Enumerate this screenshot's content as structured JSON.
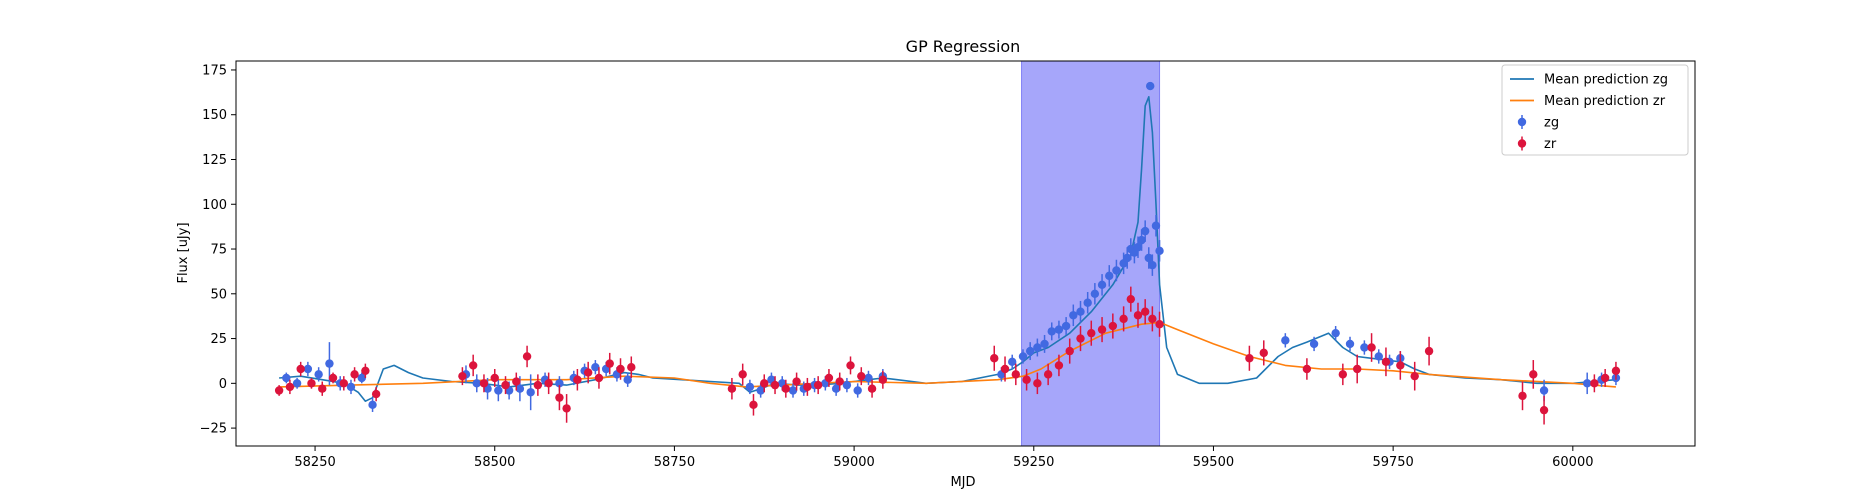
{
  "chart_data": {
    "type": "scatter",
    "title": "GP Regression",
    "xlabel": "MJD",
    "ylabel": "Flux [uJy]",
    "xlim": [
      58140,
      60170
    ],
    "ylim": [
      -35,
      180
    ],
    "xticks": [
      58250,
      58500,
      58750,
      59000,
      59250,
      59500,
      59750,
      60000
    ],
    "yticks": [
      -25,
      0,
      25,
      50,
      75,
      100,
      125,
      150,
      175
    ],
    "legend_position": "upper right",
    "shaded_region": {
      "x_start": 59233,
      "x_end": 59425,
      "color": "#a6a6fa"
    },
    "series": [
      {
        "name": "Mean prediction zg",
        "kind": "line",
        "color": "#1f77b4",
        "x": [
          58200,
          58230,
          58260,
          58290,
          58310,
          58320,
          58330,
          58345,
          58360,
          58380,
          58400,
          58440,
          58480,
          58500,
          58520,
          58560,
          58600,
          58640,
          58660,
          58680,
          58700,
          58720,
          58760,
          58800,
          58840,
          58855,
          58870,
          58890,
          58920,
          58950,
          58980,
          59000,
          59020,
          59040,
          59060,
          59100,
          59150,
          59200,
          59220,
          59235,
          59250,
          59270,
          59300,
          59330,
          59360,
          59385,
          59395,
          59400,
          59405,
          59410,
          59415,
          59420,
          59425,
          59435,
          59450,
          59480,
          59520,
          59560,
          59590,
          59610,
          59630,
          59660,
          59680,
          59700,
          59720,
          59740,
          59760,
          59780,
          59800,
          59850,
          59900,
          59950,
          60000,
          60030,
          60060
        ],
        "y": [
          3,
          4,
          2,
          0,
          -5,
          -10,
          -8,
          8,
          10,
          6,
          3,
          1,
          0,
          -1,
          -2,
          0,
          -1,
          2,
          4,
          6,
          5,
          3,
          2,
          1,
          0,
          -5,
          -3,
          0,
          -1,
          -1,
          0,
          1,
          2,
          3,
          2,
          0,
          1,
          5,
          8,
          12,
          17,
          20,
          28,
          40,
          55,
          72,
          90,
          120,
          155,
          160,
          140,
          100,
          55,
          20,
          5,
          0,
          0,
          3,
          15,
          20,
          23,
          28,
          20,
          15,
          14,
          13,
          12,
          8,
          5,
          3,
          2,
          0,
          0,
          1,
          2
        ]
      },
      {
        "name": "Mean prediction zr",
        "kind": "line",
        "color": "#ff7f0e",
        "x": [
          58200,
          58300,
          58400,
          58500,
          58600,
          58680,
          58750,
          58800,
          58850,
          58900,
          59000,
          59100,
          59200,
          59235,
          59260,
          59300,
          59350,
          59400,
          59425,
          59450,
          59500,
          59550,
          59600,
          59650,
          59700,
          59750,
          59800,
          59900,
          60000,
          60060
        ],
        "y": [
          -2,
          -1,
          0,
          2,
          2,
          4,
          3,
          0,
          -2,
          -1,
          1,
          0,
          2,
          4,
          8,
          18,
          28,
          33,
          34,
          30,
          22,
          15,
          10,
          8,
          8,
          7,
          5,
          2,
          0,
          -2
        ]
      },
      {
        "name": "zg",
        "kind": "errorbar",
        "color": "#4169e1",
        "x": [
          58210,
          58225,
          58240,
          58255,
          58270,
          58285,
          58300,
          58315,
          58330,
          58460,
          58475,
          58490,
          58505,
          58520,
          58535,
          58550,
          58570,
          58590,
          58610,
          58625,
          58640,
          58655,
          58670,
          58685,
          58855,
          58870,
          58885,
          58900,
          58915,
          58930,
          58945,
          58960,
          58975,
          58990,
          59005,
          59020,
          59040,
          59205,
          59220,
          59235,
          59245,
          59255,
          59265,
          59275,
          59285,
          59295,
          59305,
          59315,
          59325,
          59335,
          59345,
          59355,
          59365,
          59375,
          59380,
          59385,
          59390,
          59395,
          59400,
          59405,
          59410,
          59415,
          59420,
          59425,
          59600,
          59640,
          59670,
          59690,
          59710,
          59730,
          59745,
          59760,
          59960,
          60020,
          60040,
          60060
        ],
        "y": [
          3,
          0,
          8,
          5,
          11,
          0,
          -2,
          3,
          -12,
          5,
          0,
          -3,
          -4,
          -4,
          -3,
          -5,
          2,
          0,
          3,
          7,
          9,
          8,
          5,
          2,
          -2,
          -4,
          2,
          0,
          -4,
          -3,
          -1,
          0,
          -3,
          -1,
          -4,
          3,
          4,
          5,
          12,
          15,
          18,
          20,
          22,
          29,
          30,
          32,
          38,
          40,
          45,
          50,
          55,
          60,
          63,
          67,
          70,
          75,
          73,
          76,
          80,
          85,
          70,
          66,
          88,
          74,
          24,
          22,
          28,
          22,
          20,
          15,
          12,
          14,
          -4,
          0,
          2,
          3
        ],
        "error": [
          3,
          3,
          4,
          4,
          12,
          4,
          4,
          3,
          4,
          5,
          5,
          6,
          6,
          5,
          7,
          10,
          4,
          4,
          4,
          4,
          4,
          4,
          4,
          4,
          4,
          4,
          4,
          4,
          4,
          4,
          4,
          4,
          4,
          4,
          4,
          4,
          4,
          4,
          4,
          4,
          5,
          5,
          5,
          5,
          5,
          5,
          6,
          6,
          6,
          6,
          6,
          6,
          6,
          6,
          6,
          6,
          6,
          6,
          6,
          6,
          6,
          6,
          6,
          6,
          4,
          4,
          4,
          4,
          4,
          4,
          4,
          4,
          6,
          6,
          4,
          4
        ],
        "highlight_point": {
          "x": 59412,
          "y": 166
        }
      },
      {
        "name": "zr",
        "kind": "errorbar",
        "color": "#dc143c",
        "x": [
          58200,
          58215,
          58230,
          58245,
          58260,
          58275,
          58290,
          58305,
          58320,
          58335,
          58455,
          58470,
          58485,
          58500,
          58515,
          58530,
          58545,
          58560,
          58575,
          58590,
          58600,
          58615,
          58630,
          58645,
          58660,
          58675,
          58690,
          58830,
          58845,
          58860,
          58875,
          58890,
          58905,
          58920,
          58935,
          58950,
          58965,
          58980,
          58995,
          59010,
          59025,
          59040,
          59195,
          59210,
          59225,
          59240,
          59255,
          59270,
          59285,
          59300,
          59315,
          59330,
          59345,
          59360,
          59375,
          59385,
          59395,
          59405,
          59415,
          59425,
          59550,
          59570,
          59630,
          59680,
          59700,
          59720,
          59740,
          59760,
          59780,
          59800,
          59930,
          59945,
          59960,
          60030,
          60045,
          60060
        ],
        "y": [
          -4,
          -2,
          8,
          0,
          -3,
          3,
          0,
          5,
          7,
          -6,
          4,
          10,
          0,
          3,
          -1,
          1,
          15,
          -1,
          0,
          -8,
          -14,
          2,
          6,
          3,
          11,
          8,
          9,
          -3,
          5,
          -12,
          0,
          -1,
          -3,
          1,
          -2,
          -1,
          3,
          1,
          10,
          4,
          -3,
          2,
          14,
          8,
          5,
          2,
          0,
          5,
          10,
          18,
          25,
          28,
          30,
          32,
          36,
          47,
          38,
          40,
          36,
          33,
          14,
          17,
          8,
          5,
          8,
          20,
          12,
          10,
          4,
          18,
          -7,
          5,
          -15,
          0,
          3,
          7
        ],
        "error": [
          3,
          4,
          4,
          3,
          4,
          3,
          4,
          4,
          4,
          4,
          5,
          6,
          5,
          5,
          5,
          5,
          6,
          6,
          6,
          7,
          8,
          6,
          6,
          6,
          6,
          6,
          6,
          6,
          6,
          6,
          5,
          5,
          5,
          5,
          5,
          5,
          5,
          5,
          5,
          5,
          5,
          5,
          7,
          7,
          6,
          6,
          6,
          6,
          6,
          7,
          7,
          7,
          7,
          7,
          7,
          7,
          7,
          7,
          7,
          7,
          7,
          7,
          6,
          6,
          8,
          8,
          8,
          8,
          8,
          8,
          8,
          8,
          8,
          5,
          5,
          5
        ]
      }
    ]
  }
}
